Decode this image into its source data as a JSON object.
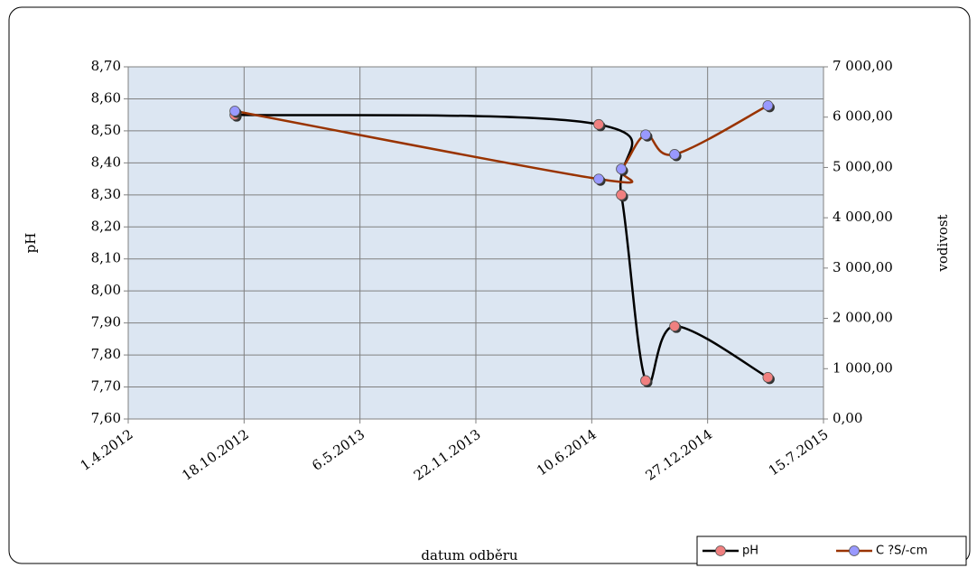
{
  "chart_data": {
    "type": "line",
    "xlabel": "datum odběru",
    "ylabel": "pH",
    "y2label": "vodivost",
    "x": [
      "2012-10-02",
      "2014-06-22",
      "2014-07-31",
      "2014-09-11",
      "2014-10-31",
      "2015-04-10"
    ],
    "series": [
      {
        "name": "pH",
        "color": "#000000",
        "marker_color": "#f08080",
        "values": [
          8.55,
          8.52,
          8.3,
          7.72,
          7.89,
          7.73
        ]
      },
      {
        "name": "C ?S/-cm",
        "color": "#993300",
        "marker_color": "#9999ff",
        "axis": "y2",
        "values": [
          6120,
          4770,
          4970,
          5650,
          5260,
          6230
        ]
      }
    ],
    "xlim": [
      "2012-04-01",
      "2015-07-15"
    ],
    "xticks": [
      {
        "value": "2012-04-01",
        "label": "1.4.2012"
      },
      {
        "value": "2012-10-18",
        "label": "18.10.2012"
      },
      {
        "value": "2013-05-06",
        "label": "6.5.2013"
      },
      {
        "value": "2013-11-22",
        "label": "22.11.2013"
      },
      {
        "value": "2014-06-10",
        "label": "10.6.2014"
      },
      {
        "value": "2014-12-27",
        "label": "27.12.2014"
      },
      {
        "value": "2015-07-15",
        "label": "15.7.2015"
      }
    ],
    "ylim": [
      7.6,
      8.7
    ],
    "yticks": [
      {
        "value": 7.6,
        "label": "7,60"
      },
      {
        "value": 7.7,
        "label": "7,70"
      },
      {
        "value": 7.8,
        "label": "7,80"
      },
      {
        "value": 7.9,
        "label": "7,90"
      },
      {
        "value": 8.0,
        "label": "8,00"
      },
      {
        "value": 8.1,
        "label": "8,10"
      },
      {
        "value": 8.2,
        "label": "8,20"
      },
      {
        "value": 8.3,
        "label": "8,30"
      },
      {
        "value": 8.4,
        "label": "8,40"
      },
      {
        "value": 8.5,
        "label": "8,50"
      },
      {
        "value": 8.6,
        "label": "8,60"
      },
      {
        "value": 8.7,
        "label": "8,70"
      }
    ],
    "y2lim": [
      0,
      7000
    ],
    "y2ticks": [
      {
        "value": 0,
        "label": "0,00"
      },
      {
        "value": 1000,
        "label": "1 000,00"
      },
      {
        "value": 2000,
        "label": "2 000,00"
      },
      {
        "value": 3000,
        "label": "3 000,00"
      },
      {
        "value": 4000,
        "label": "4 000,00"
      },
      {
        "value": 5000,
        "label": "5 000,00"
      },
      {
        "value": 6000,
        "label": "6 000,00"
      },
      {
        "value": 7000,
        "label": "7 000,00"
      }
    ],
    "grid": true,
    "legend": "bottom-right",
    "plot_background": "#dce6f2"
  }
}
